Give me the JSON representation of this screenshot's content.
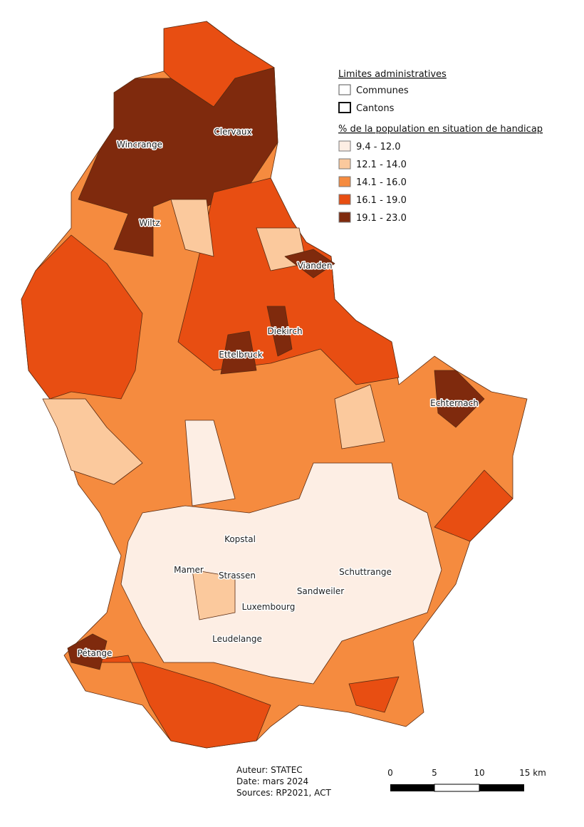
{
  "legend": {
    "admin_title": "Limites administratives",
    "admin_items": [
      "Communes",
      "Cantons"
    ],
    "title": "% de la population en situation de handicap",
    "classes": [
      {
        "label": "9.4 - 12.0",
        "color": "#fdeee4"
      },
      {
        "label": "12.1 - 14.0",
        "color": "#fbc99d"
      },
      {
        "label": "14.1 - 16.0",
        "color": "#f58b3f"
      },
      {
        "label": "16.1 - 19.0",
        "color": "#e84e12"
      },
      {
        "label": "19.1 - 23.0",
        "color": "#7f2a0d"
      }
    ]
  },
  "places": [
    "Wincrange",
    "Clervaux",
    "Wiltz",
    "Vianden",
    "Diekirch",
    "Ettelbruck",
    "Echternach",
    "Kopstal",
    "Mamer",
    "Strassen",
    "Schuttrange",
    "Sandweiler",
    "Luxembourg",
    "Leudelange",
    "Pétange"
  ],
  "credits": [
    "Auteur: STATEC",
    "Date: mars 2024",
    "Sources: RP2021, ACT"
  ],
  "scale_bar": [
    "0",
    "5",
    "10",
    "15 km"
  ]
}
